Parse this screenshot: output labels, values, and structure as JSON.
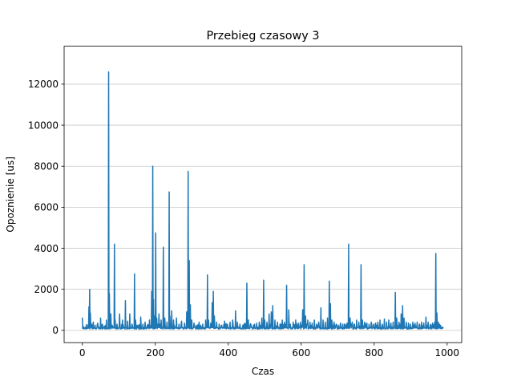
{
  "chart_data": {
    "type": "line",
    "title": "Przebieg czasowy 3",
    "xlabel": "Czas",
    "ylabel": "Opoznienie [us]",
    "xlim": [
      -50,
      1040
    ],
    "ylim": [
      -600,
      13850
    ],
    "xticks": [
      0,
      200,
      400,
      600,
      800,
      1000
    ],
    "yticks": [
      0,
      2000,
      4000,
      6000,
      8000,
      10000,
      12000
    ],
    "grid": "horizontal",
    "series_color": "#1f77b4",
    "grid_color": "#c8c8c8",
    "n_points": 991,
    "baseline": 60,
    "spikes": [
      [
        0,
        620
      ],
      [
        3,
        180
      ],
      [
        8,
        150
      ],
      [
        14,
        120
      ],
      [
        18,
        1150
      ],
      [
        20,
        2000
      ],
      [
        22,
        850
      ],
      [
        25,
        300
      ],
      [
        30,
        400
      ],
      [
        35,
        250
      ],
      [
        42,
        350
      ],
      [
        50,
        600
      ],
      [
        55,
        300
      ],
      [
        60,
        200
      ],
      [
        66,
        500
      ],
      [
        72,
        12600
      ],
      [
        74,
        1800
      ],
      [
        78,
        800
      ],
      [
        82,
        250
      ],
      [
        88,
        4200
      ],
      [
        90,
        500
      ],
      [
        95,
        300
      ],
      [
        102,
        800
      ],
      [
        110,
        500
      ],
      [
        118,
        1450
      ],
      [
        124,
        450
      ],
      [
        130,
        800
      ],
      [
        136,
        300
      ],
      [
        143,
        2750
      ],
      [
        146,
        500
      ],
      [
        152,
        250
      ],
      [
        160,
        650
      ],
      [
        166,
        300
      ],
      [
        172,
        400
      ],
      [
        178,
        250
      ],
      [
        184,
        500
      ],
      [
        190,
        1900
      ],
      [
        193,
        8000
      ],
      [
        195,
        1500
      ],
      [
        198,
        700
      ],
      [
        201,
        4750
      ],
      [
        204,
        600
      ],
      [
        210,
        800
      ],
      [
        216,
        500
      ],
      [
        222,
        4050
      ],
      [
        226,
        600
      ],
      [
        232,
        400
      ],
      [
        238,
        6750
      ],
      [
        240,
        700
      ],
      [
        245,
        950
      ],
      [
        250,
        500
      ],
      [
        258,
        600
      ],
      [
        265,
        300
      ],
      [
        272,
        450
      ],
      [
        280,
        350
      ],
      [
        286,
        900
      ],
      [
        290,
        7750
      ],
      [
        293,
        3400
      ],
      [
        296,
        1250
      ],
      [
        300,
        500
      ],
      [
        306,
        350
      ],
      [
        312,
        250
      ],
      [
        320,
        400
      ],
      [
        330,
        300
      ],
      [
        338,
        500
      ],
      [
        343,
        2700
      ],
      [
        346,
        500
      ],
      [
        352,
        350
      ],
      [
        356,
        1350
      ],
      [
        359,
        1900
      ],
      [
        362,
        700
      ],
      [
        368,
        400
      ],
      [
        375,
        300
      ],
      [
        382,
        250
      ],
      [
        390,
        450
      ],
      [
        398,
        300
      ],
      [
        405,
        400
      ],
      [
        412,
        500
      ],
      [
        420,
        950
      ],
      [
        425,
        400
      ],
      [
        432,
        300
      ],
      [
        440,
        250
      ],
      [
        446,
        350
      ],
      [
        451,
        2300
      ],
      [
        455,
        500
      ],
      [
        462,
        300
      ],
      [
        470,
        250
      ],
      [
        478,
        350
      ],
      [
        485,
        400
      ],
      [
        492,
        600
      ],
      [
        497,
        2450
      ],
      [
        500,
        500
      ],
      [
        506,
        400
      ],
      [
        512,
        800
      ],
      [
        518,
        900
      ],
      [
        522,
        1200
      ],
      [
        528,
        500
      ],
      [
        535,
        400
      ],
      [
        542,
        300
      ],
      [
        548,
        500
      ],
      [
        554,
        400
      ],
      [
        560,
        2200
      ],
      [
        566,
        1000
      ],
      [
        570,
        300
      ],
      [
        578,
        400
      ],
      [
        585,
        500
      ],
      [
        592,
        350
      ],
      [
        598,
        400
      ],
      [
        604,
        1000
      ],
      [
        608,
        3200
      ],
      [
        612,
        700
      ],
      [
        618,
        500
      ],
      [
        624,
        400
      ],
      [
        630,
        350
      ],
      [
        636,
        500
      ],
      [
        642,
        300
      ],
      [
        648,
        400
      ],
      [
        654,
        1100
      ],
      [
        660,
        500
      ],
      [
        666,
        400
      ],
      [
        672,
        600
      ],
      [
        677,
        2400
      ],
      [
        680,
        1300
      ],
      [
        684,
        500
      ],
      [
        690,
        400
      ],
      [
        696,
        300
      ],
      [
        702,
        250
      ],
      [
        708,
        350
      ],
      [
        714,
        300
      ],
      [
        720,
        250
      ],
      [
        726,
        350
      ],
      [
        730,
        4200
      ],
      [
        734,
        600
      ],
      [
        740,
        400
      ],
      [
        746,
        300
      ],
      [
        752,
        500
      ],
      [
        758,
        400
      ],
      [
        764,
        3200
      ],
      [
        768,
        500
      ],
      [
        774,
        400
      ],
      [
        780,
        350
      ],
      [
        786,
        300
      ],
      [
        792,
        400
      ],
      [
        798,
        300
      ],
      [
        804,
        350
      ],
      [
        810,
        400
      ],
      [
        816,
        500
      ],
      [
        822,
        300
      ],
      [
        828,
        550
      ],
      [
        834,
        400
      ],
      [
        840,
        500
      ],
      [
        846,
        350
      ],
      [
        852,
        400
      ],
      [
        858,
        1850
      ],
      [
        862,
        600
      ],
      [
        868,
        400
      ],
      [
        874,
        800
      ],
      [
        878,
        1200
      ],
      [
        882,
        600
      ],
      [
        888,
        400
      ],
      [
        894,
        350
      ],
      [
        900,
        300
      ],
      [
        906,
        400
      ],
      [
        912,
        350
      ],
      [
        918,
        400
      ],
      [
        924,
        300
      ],
      [
        930,
        400
      ],
      [
        936,
        350
      ],
      [
        942,
        650
      ],
      [
        948,
        400
      ],
      [
        954,
        300
      ],
      [
        960,
        350
      ],
      [
        966,
        400
      ],
      [
        969,
        3750
      ],
      [
        972,
        850
      ],
      [
        976,
        400
      ],
      [
        982,
        250
      ],
      [
        990,
        150
      ]
    ]
  }
}
